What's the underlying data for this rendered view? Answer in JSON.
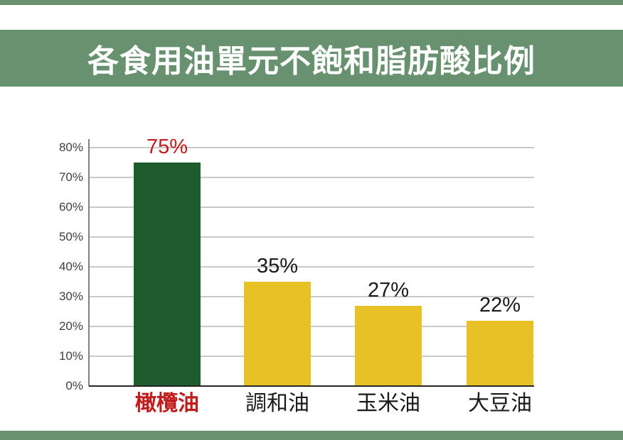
{
  "title": {
    "text": "各食用油單元不飽和脂肪酸比例"
  },
  "colors": {
    "banner_green": "#68916F",
    "border_green": "#68916F",
    "title_text": "#FFFFFF",
    "olive_bar_green": "#1E5C2D",
    "bar_yellow": "#E8C127",
    "highlight_red": "#C11C1C",
    "gridline": "#C9C9C9",
    "axis_line": "#808080",
    "baseline": "#262626",
    "text_dark": "#1A1A1A",
    "tick_text": "#404040"
  },
  "chart_data": {
    "type": "bar",
    "title": "各食用油單元不飽和脂肪酸比例",
    "categories": [
      "橄欖油",
      "調和油",
      "玉米油",
      "大豆油"
    ],
    "values": [
      75,
      35,
      27,
      22
    ],
    "value_labels": [
      "75%",
      "35%",
      "27%",
      "22%"
    ],
    "xlabel": "",
    "ylabel": "",
    "ylim": [
      0,
      80
    ],
    "y_ticks": [
      0,
      10,
      20,
      30,
      40,
      50,
      60,
      70,
      80
    ],
    "y_tick_labels": [
      "0%",
      "10%",
      "20%",
      "30%",
      "40%",
      "50%",
      "60%",
      "70%",
      "80%"
    ],
    "grid": true,
    "legend": false,
    "bar_colors": [
      "#1E5C2D",
      "#E8C127",
      "#E8C127",
      "#E8C127"
    ],
    "value_label_colors": [
      "#C11C1C",
      "#1A1A1A",
      "#1A1A1A",
      "#1A1A1A"
    ],
    "category_label_colors": [
      "#C11C1C",
      "#1A1A1A",
      "#1A1A1A",
      "#1A1A1A"
    ],
    "highlighted_category": "橄欖油"
  }
}
